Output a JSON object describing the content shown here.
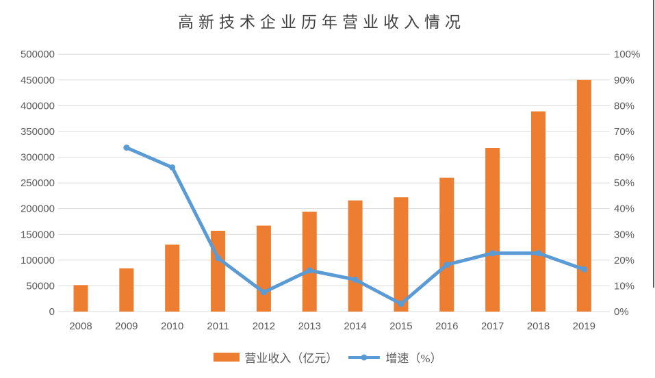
{
  "title": "高新技术企业历年营业收入情况",
  "colors": {
    "bar": "#ED7D31",
    "line": "#5B9BD5",
    "grid": "#D9D9D9",
    "axis_text": "#595959",
    "title_text": "#404040",
    "border": "#595959"
  },
  "legend": {
    "revenue_label": "营业收入（亿元）",
    "growth_label": "增速（%）"
  },
  "chart_data": {
    "type": "bar",
    "title": "高新技术企业历年营业收入情况",
    "categories": [
      "2008",
      "2009",
      "2010",
      "2011",
      "2012",
      "2013",
      "2014",
      "2015",
      "2016",
      "2017",
      "2018",
      "2019"
    ],
    "series": [
      {
        "name": "营业收入（亿元）",
        "type": "bar",
        "axis": "left",
        "color": "#ED7D31",
        "values": [
          51500,
          84000,
          130000,
          157000,
          167000,
          194000,
          216000,
          222000,
          260000,
          318000,
          389000,
          450000
        ]
      },
      {
        "name": "增速（%）",
        "type": "line",
        "axis": "right",
        "color": "#5B9BD5",
        "values": [
          null,
          63.7,
          56.0,
          20.8,
          7.5,
          16.0,
          12.4,
          3.0,
          18.2,
          22.7,
          22.7,
          16.4
        ]
      }
    ],
    "left_axis": {
      "min": 0,
      "max": 500000,
      "step": 50000,
      "tick_labels": [
        "0",
        "50000",
        "100000",
        "150000",
        "200000",
        "250000",
        "300000",
        "350000",
        "400000",
        "450000",
        "500000"
      ]
    },
    "right_axis": {
      "min": 0,
      "max": 100,
      "step": 10,
      "tick_labels": [
        "0%",
        "10%",
        "20%",
        "30%",
        "40%",
        "50%",
        "60%",
        "70%",
        "80%",
        "90%",
        "100%"
      ]
    },
    "grid": true,
    "legend_position": "bottom"
  }
}
